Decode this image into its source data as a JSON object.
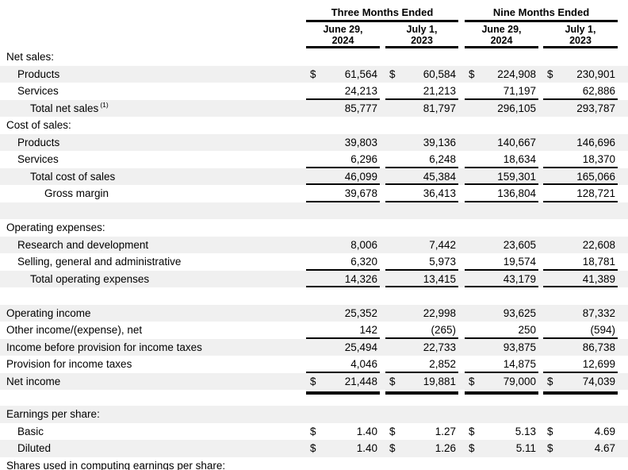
{
  "currency_symbol": "$",
  "colors": {
    "row_shade": "#f0f0f0",
    "rule": "#000000",
    "text": "#000000"
  },
  "header": {
    "period_groups": [
      {
        "title": "Three Months Ended",
        "columns": [
          "June 29,\n2024",
          "July 1,\n2023"
        ]
      },
      {
        "title": "Nine Months Ended",
        "columns": [
          "June 29,\n2024",
          "July 1,\n2023"
        ]
      }
    ]
  },
  "rows": [
    {
      "label": "Net sales:",
      "indent": 0,
      "shaded": false
    },
    {
      "label": "Products",
      "indent": 1,
      "shaded": true,
      "dollar": true,
      "values": [
        "61,564",
        "60,584",
        "224,908",
        "230,901"
      ]
    },
    {
      "label": "Services",
      "indent": 1,
      "shaded": false,
      "values": [
        "24,213",
        "21,213",
        "71,197",
        "62,886"
      ],
      "rule_below": true
    },
    {
      "label": "Total net sales",
      "sup": "(1)",
      "indent": 2,
      "shaded": true,
      "values": [
        "85,777",
        "81,797",
        "296,105",
        "293,787"
      ]
    },
    {
      "label": "Cost of sales:",
      "indent": 0,
      "shaded": false
    },
    {
      "label": "Products",
      "indent": 1,
      "shaded": true,
      "values": [
        "39,803",
        "39,136",
        "140,667",
        "146,696"
      ]
    },
    {
      "label": "Services",
      "indent": 1,
      "shaded": false,
      "values": [
        "6,296",
        "6,248",
        "18,634",
        "18,370"
      ],
      "rule_below": true
    },
    {
      "label": "Total cost of sales",
      "indent": 2,
      "shaded": true,
      "values": [
        "46,099",
        "45,384",
        "159,301",
        "165,066"
      ],
      "rule_below": true
    },
    {
      "label": "Gross margin",
      "indent": 3,
      "shaded": false,
      "values": [
        "39,678",
        "36,413",
        "136,804",
        "128,721"
      ],
      "rule_below": true
    },
    {
      "type": "spacer",
      "shaded": true
    },
    {
      "label": "Operating expenses:",
      "indent": 0,
      "shaded": false
    },
    {
      "label": "Research and development",
      "indent": 1,
      "shaded": true,
      "values": [
        "8,006",
        "7,442",
        "23,605",
        "22,608"
      ]
    },
    {
      "label": "Selling, general and administrative",
      "indent": 1,
      "shaded": false,
      "values": [
        "6,320",
        "5,973",
        "19,574",
        "18,781"
      ],
      "rule_below": true
    },
    {
      "label": "Total operating expenses",
      "indent": 2,
      "shaded": true,
      "values": [
        "14,326",
        "13,415",
        "43,179",
        "41,389"
      ],
      "rule_below": true
    },
    {
      "type": "spacer",
      "shaded": false
    },
    {
      "label": "Operating income",
      "indent": 0,
      "shaded": true,
      "values": [
        "25,352",
        "22,998",
        "93,625",
        "87,332"
      ]
    },
    {
      "label": "Other income/(expense), net",
      "indent": 0,
      "shaded": false,
      "values": [
        "142",
        "(265)",
        "250",
        "(594)"
      ],
      "rule_below": true
    },
    {
      "label": "Income before provision for income taxes",
      "indent": 0,
      "shaded": true,
      "values": [
        "25,494",
        "22,733",
        "93,875",
        "86,738"
      ]
    },
    {
      "label": "Provision for income taxes",
      "indent": 0,
      "shaded": false,
      "values": [
        "4,046",
        "2,852",
        "14,875",
        "12,699"
      ],
      "rule_below": true
    },
    {
      "label": "Net income",
      "indent": 0,
      "shaded": true,
      "dollar": true,
      "values": [
        "21,448",
        "19,881",
        "79,000",
        "74,039"
      ]
    },
    {
      "type": "thickrule"
    },
    {
      "type": "spacer",
      "shaded": false,
      "height": 14
    },
    {
      "label": "Earnings per share:",
      "indent": 0,
      "shaded": true
    },
    {
      "label": "Basic",
      "indent": 1,
      "shaded": false,
      "dollar": true,
      "values": [
        "1.40",
        "1.27",
        "5.13",
        "4.69"
      ]
    },
    {
      "label": "Diluted",
      "indent": 1,
      "shaded": true,
      "dollar": true,
      "values": [
        "1.40",
        "1.26",
        "5.11",
        "4.67"
      ]
    },
    {
      "label": "Shares used in computing earnings per share:",
      "indent": 0,
      "shaded": false,
      "clipped": true
    }
  ]
}
